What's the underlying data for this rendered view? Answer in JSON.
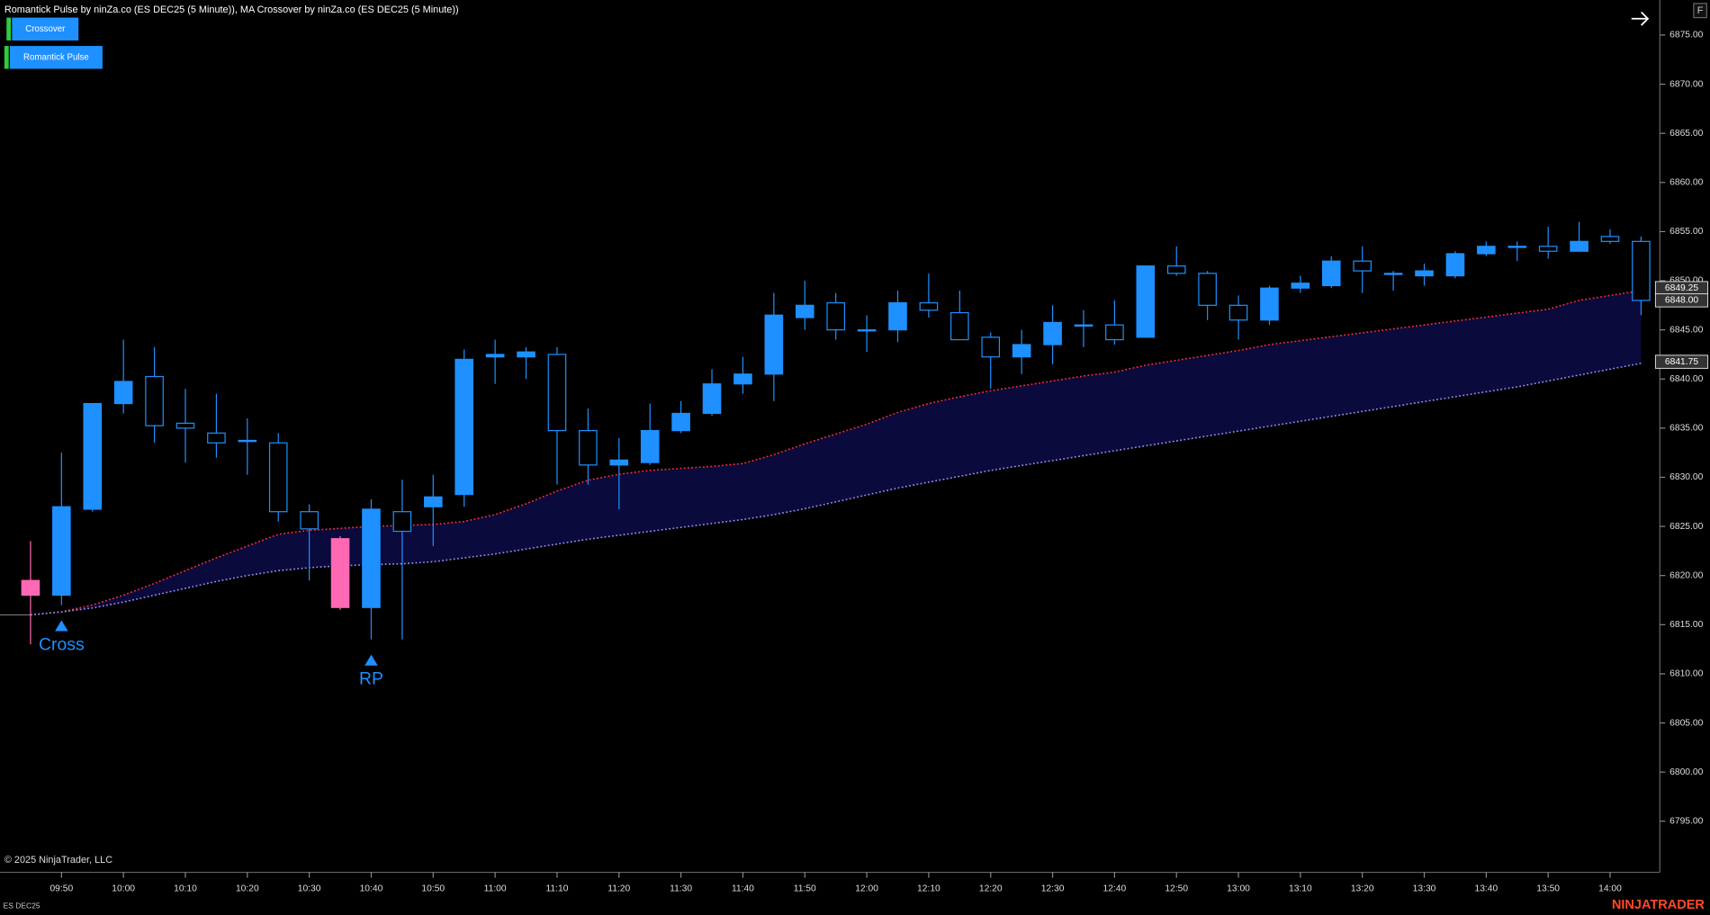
{
  "header": {
    "title": "Romantick Pulse by ninZa.co (ES DEC25 (5 Minute)), MA Crossover by ninZa.co (ES DEC25 (5 Minute))",
    "buttons": [
      "Crossover",
      "Romantick Pulse"
    ],
    "corner_button": "F"
  },
  "footer": {
    "copyright": "© 2025 NinjaTrader, LLC",
    "instrument": "ES DEC25",
    "brand": "NINJATRADER"
  },
  "chart_data": {
    "type": "candlestick",
    "categories": [
      null,
      "09:50",
      null,
      "10:00",
      null,
      "10:10",
      null,
      "10:20",
      null,
      "10:30",
      null,
      "10:40",
      null,
      "10:50",
      null,
      "11:00",
      null,
      "11:10",
      null,
      "11:20",
      null,
      "11:30",
      null,
      "11:40",
      null,
      "11:50",
      null,
      "12:00",
      null,
      "12:10",
      null,
      "12:20",
      null,
      "12:30",
      null,
      "12:40",
      null,
      "12:50",
      null,
      "13:00",
      null,
      "13:10",
      null,
      "13:20",
      null,
      "13:30",
      null,
      "13:40",
      null,
      "13:50",
      null,
      "14:00",
      null
    ],
    "open": [
      6819.5,
      6818.0,
      6826.75,
      6837.5,
      6840.25,
      6835.5,
      6834.5,
      6833.75,
      6833.5,
      6826.5,
      6823.75,
      6816.75,
      6826.5,
      6827.0,
      6828.25,
      6842.25,
      6842.25,
      6842.5,
      6834.75,
      6831.25,
      6831.5,
      6834.75,
      6836.5,
      6839.5,
      6840.5,
      6846.25,
      6847.75,
      6845.0,
      6845.0,
      6847.75,
      6846.75,
      6844.25,
      6842.25,
      6843.5,
      6845.5,
      6845.5,
      6844.25,
      6851.5,
      6850.75,
      6847.5,
      6846.0,
      6849.25,
      6849.5,
      6852.0,
      6850.75,
      6850.5,
      6850.5,
      6852.75,
      6853.5,
      6853.5,
      6853.0,
      6854.5,
      6854.0
    ],
    "high": [
      6823.5,
      6832.5,
      6837.5,
      6844.0,
      6843.25,
      6839.0,
      6838.5,
      6836.0,
      6834.5,
      6827.25,
      6824.0,
      6827.75,
      6829.75,
      6830.25,
      6843.0,
      6844.0,
      6843.25,
      6843.25,
      6837.0,
      6834.0,
      6837.5,
      6837.75,
      6841.0,
      6842.25,
      6848.75,
      6850.0,
      6848.75,
      6846.5,
      6849.0,
      6850.75,
      6849.0,
      6844.75,
      6845.0,
      6847.5,
      6847.0,
      6848.0,
      6851.5,
      6853.5,
      6851.0,
      6848.5,
      6849.5,
      6850.5,
      6852.5,
      6853.5,
      6851.0,
      6851.75,
      6853.0,
      6854.0,
      6854.0,
      6855.5,
      6856.0,
      6855.25,
      6854.5
    ],
    "low": [
      6813.0,
      6817.0,
      6826.5,
      6836.5,
      6833.5,
      6831.5,
      6832.0,
      6830.25,
      6825.5,
      6819.5,
      6816.5,
      6813.5,
      6813.5,
      6823.0,
      6827.0,
      6839.5,
      6840.0,
      6829.25,
      6829.25,
      6826.75,
      6831.25,
      6834.5,
      6836.25,
      6838.5,
      6837.75,
      6845.0,
      6844.0,
      6842.75,
      6843.75,
      6846.25,
      6844.0,
      6839.0,
      6840.5,
      6841.5,
      6843.25,
      6843.5,
      6844.25,
      6850.5,
      6846.0,
      6844.0,
      6845.5,
      6848.75,
      6849.25,
      6848.75,
      6849.0,
      6849.5,
      6850.25,
      6852.5,
      6852.0,
      6852.25,
      6853.0,
      6853.75,
      6846.5
    ],
    "close": [
      6818.0,
      6827.0,
      6837.5,
      6839.75,
      6835.25,
      6835.0,
      6833.5,
      6833.75,
      6826.5,
      6824.75,
      6816.75,
      6826.75,
      6824.5,
      6828.0,
      6842.0,
      6842.5,
      6842.75,
      6834.75,
      6831.25,
      6831.75,
      6834.75,
      6836.5,
      6839.5,
      6840.5,
      6846.5,
      6847.5,
      6845.0,
      6845.0,
      6847.75,
      6847.0,
      6844.0,
      6842.25,
      6843.5,
      6845.75,
      6845.5,
      6844.0,
      6851.5,
      6850.75,
      6847.5,
      6846.0,
      6849.25,
      6849.75,
      6852.0,
      6851.0,
      6850.75,
      6851.0,
      6852.75,
      6853.5,
      6853.5,
      6853.0,
      6854.0,
      6854.0,
      6848.0
    ],
    "colors": [
      "#ff69b4",
      "#1e90ff",
      "#1e90ff",
      "#1e90ff",
      "#1e90ff",
      "#1e90ff",
      "#1e90ff",
      "#1e90ff",
      "#1e90ff",
      "#1e90ff",
      "#ff69b4",
      "#1e90ff",
      "#1e90ff",
      "#1e90ff",
      "#1e90ff",
      "#1e90ff",
      "#1e90ff",
      "#1e90ff",
      "#1e90ff",
      "#1e90ff",
      "#1e90ff",
      "#1e90ff",
      "#1e90ff",
      "#1e90ff",
      "#1e90ff",
      "#1e90ff",
      "#1e90ff",
      "#1e90ff",
      "#1e90ff",
      "#1e90ff",
      "#1e90ff",
      "#1e90ff",
      "#1e90ff",
      "#1e90ff",
      "#1e90ff",
      "#1e90ff",
      "#1e90ff",
      "#1e90ff",
      "#1e90ff",
      "#1e90ff",
      "#1e90ff",
      "#1e90ff",
      "#1e90ff",
      "#1e90ff",
      "#1e90ff",
      "#1e90ff",
      "#1e90ff",
      "#1e90ff",
      "#1e90ff",
      "#1e90ff",
      "#1e90ff",
      "#1e90ff",
      "#1e90ff"
    ],
    "hollow_color": "#1e90ff",
    "series": [
      {
        "color": "#ff3030",
        "values": [
          6816.0,
          6816.3,
          6817.0,
          6818.0,
          6819.2,
          6820.5,
          6821.8,
          6823.0,
          6824.2,
          6824.6,
          6824.8,
          6825.0,
          6825.1,
          6825.2,
          6825.5,
          6826.2,
          6827.3,
          6828.6,
          6829.7,
          6830.3,
          6830.7,
          6830.9,
          6831.1,
          6831.4,
          6832.3,
          6833.4,
          6834.4,
          6835.4,
          6836.6,
          6837.5,
          6838.2,
          6838.8,
          6839.3,
          6839.8,
          6840.3,
          6840.7,
          6841.4,
          6841.9,
          6842.4,
          6842.9,
          6843.5,
          6843.9,
          6844.3,
          6844.7,
          6845.1,
          6845.5,
          6845.9,
          6846.3,
          6846.7,
          6847.1,
          6848.0,
          6848.5,
          6849.0
        ]
      },
      {
        "color": "#9a8cff",
        "values": [
          6816.0,
          6816.3,
          6816.7,
          6817.3,
          6818.0,
          6818.7,
          6819.4,
          6820.0,
          6820.5,
          6820.8,
          6821.0,
          6821.1,
          6821.2,
          6821.4,
          6821.8,
          6822.2,
          6822.7,
          6823.2,
          6823.7,
          6824.1,
          6824.5,
          6824.9,
          6825.3,
          6825.7,
          6826.2,
          6826.8,
          6827.5,
          6828.2,
          6828.9,
          6829.5,
          6830.1,
          6830.7,
          6831.2,
          6831.7,
          6832.2,
          6832.7,
          6833.2,
          6833.7,
          6834.2,
          6834.7,
          6835.2,
          6835.7,
          6836.2,
          6836.7,
          6837.2,
          6837.7,
          6838.2,
          6838.7,
          6839.2,
          6839.8,
          6840.4,
          6841.0,
          6841.6
        ]
      }
    ],
    "band_color": "#0a0a3c",
    "signals": [
      {
        "text": "Cross",
        "bar": 1
      },
      {
        "text": "RP",
        "bar": 11
      }
    ],
    "price_markers": [
      {
        "value": 6849.25,
        "label": "6849.25"
      },
      {
        "value": 6848.0,
        "label": "6848.00"
      },
      {
        "value": 6841.75,
        "label": "6841.75"
      }
    ],
    "ylim": [
      6789.8,
      6878.55
    ],
    "yticks": [
      {
        "value": 6795,
        "label": "6795.00"
      },
      {
        "value": 6800,
        "label": "6800.00"
      },
      {
        "value": 6805,
        "label": "6805.00"
      },
      {
        "value": 6810,
        "label": "6810.00"
      },
      {
        "value": 6815,
        "label": "6815.00"
      },
      {
        "value": 6820,
        "label": "6820.00"
      },
      {
        "value": 6825,
        "label": "6825.00"
      },
      {
        "value": 6830,
        "label": "6830.00"
      },
      {
        "value": 6835,
        "label": "6835.00"
      },
      {
        "value": 6840,
        "label": "6840.00"
      },
      {
        "value": 6845,
        "label": "6845.00"
      },
      {
        "value": 6850,
        "label": "6850.00"
      },
      {
        "value": 6855,
        "label": "6855.00"
      },
      {
        "value": 6860,
        "label": "6860.00"
      },
      {
        "value": 6865,
        "label": "6865.00"
      },
      {
        "value": 6870,
        "label": "6870.00"
      },
      {
        "value": 6875,
        "label": "6875.00"
      }
    ]
  }
}
